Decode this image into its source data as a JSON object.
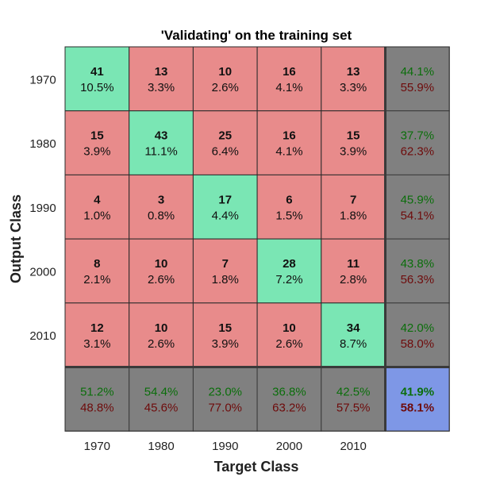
{
  "chart_data": {
    "type": "heatmap",
    "title": "'Validating' on the training set",
    "xlabel": "Target Class",
    "ylabel": "Output Class",
    "x_tick_labels": [
      "1970",
      "1980",
      "1990",
      "2000",
      "2010"
    ],
    "y_tick_labels": [
      "1970",
      "1980",
      "1990",
      "2000",
      "2010"
    ],
    "matrix": [
      [
        {
          "count": "41",
          "pct": "10.5%"
        },
        {
          "count": "13",
          "pct": "3.3%"
        },
        {
          "count": "10",
          "pct": "2.6%"
        },
        {
          "count": "16",
          "pct": "4.1%"
        },
        {
          "count": "13",
          "pct": "3.3%"
        }
      ],
      [
        {
          "count": "15",
          "pct": "3.9%"
        },
        {
          "count": "43",
          "pct": "11.1%"
        },
        {
          "count": "25",
          "pct": "6.4%"
        },
        {
          "count": "16",
          "pct": "4.1%"
        },
        {
          "count": "15",
          "pct": "3.9%"
        }
      ],
      [
        {
          "count": "4",
          "pct": "1.0%"
        },
        {
          "count": "3",
          "pct": "0.8%"
        },
        {
          "count": "17",
          "pct": "4.4%"
        },
        {
          "count": "6",
          "pct": "1.5%"
        },
        {
          "count": "7",
          "pct": "1.8%"
        }
      ],
      [
        {
          "count": "8",
          "pct": "2.1%"
        },
        {
          "count": "10",
          "pct": "2.6%"
        },
        {
          "count": "7",
          "pct": "1.8%"
        },
        {
          "count": "28",
          "pct": "7.2%"
        },
        {
          "count": "11",
          "pct": "2.8%"
        }
      ],
      [
        {
          "count": "12",
          "pct": "3.1%"
        },
        {
          "count": "10",
          "pct": "2.6%"
        },
        {
          "count": "15",
          "pct": "3.9%"
        },
        {
          "count": "10",
          "pct": "2.6%"
        },
        {
          "count": "34",
          "pct": "8.7%"
        }
      ]
    ],
    "row_summary": [
      {
        "correct": "44.1%",
        "incorrect": "55.9%"
      },
      {
        "correct": "37.7%",
        "incorrect": "62.3%"
      },
      {
        "correct": "45.9%",
        "incorrect": "54.1%"
      },
      {
        "correct": "43.8%",
        "incorrect": "56.3%"
      },
      {
        "correct": "42.0%",
        "incorrect": "58.0%"
      }
    ],
    "col_summary": [
      {
        "correct": "51.2%",
        "incorrect": "48.8%"
      },
      {
        "correct": "54.4%",
        "incorrect": "45.6%"
      },
      {
        "correct": "23.0%",
        "incorrect": "77.0%"
      },
      {
        "correct": "36.8%",
        "incorrect": "63.2%"
      },
      {
        "correct": "42.5%",
        "incorrect": "57.5%"
      }
    ],
    "overall": {
      "correct": "41.9%",
      "incorrect": "58.1%"
    },
    "colors": {
      "diagonal": "#7ae6b4",
      "off_diagonal": "#e88b8b",
      "summary": "#808080",
      "overall": "#7e97e6",
      "correct_text": "#0b6e0b",
      "incorrect_text": "#6e0b0b",
      "cell_text": "#111111"
    }
  }
}
